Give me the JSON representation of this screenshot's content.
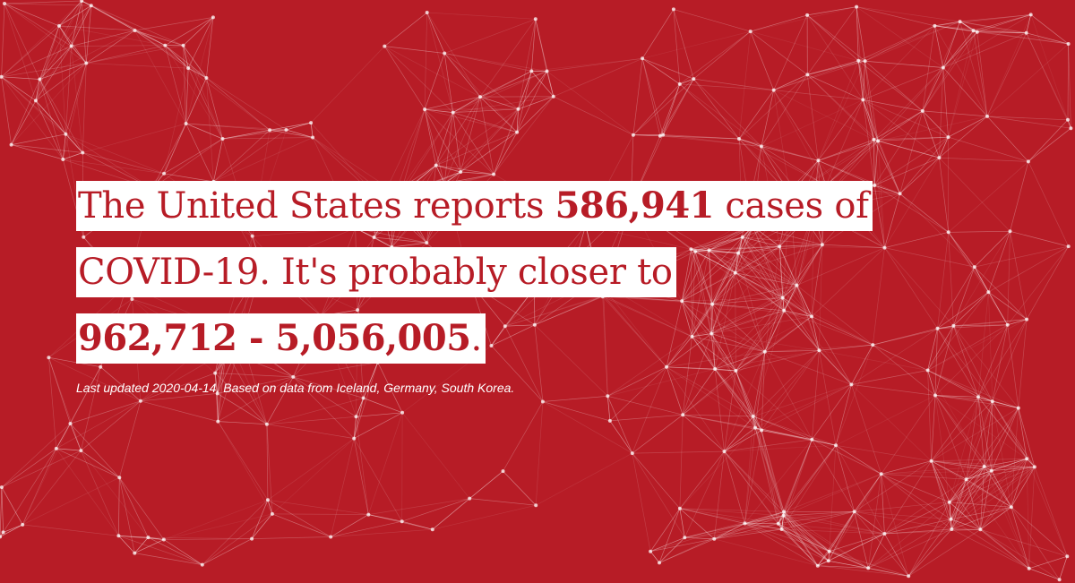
{
  "headline": {
    "line1_prefix": "The United States reports ",
    "reported_cases": "586,941",
    "line1_suffix": " cases of",
    "line2": "COVID-19. It's probably closer to",
    "estimate_range": "962,712 - 5,056,005",
    "line3_suffix": "."
  },
  "footnote": "Last updated 2020-04-14. Based on data from Iceland, Germany, South Korea.",
  "colors": {
    "background": "#b71c26",
    "text_highlight": "#ffffff",
    "network_lines": "#ffffff"
  }
}
